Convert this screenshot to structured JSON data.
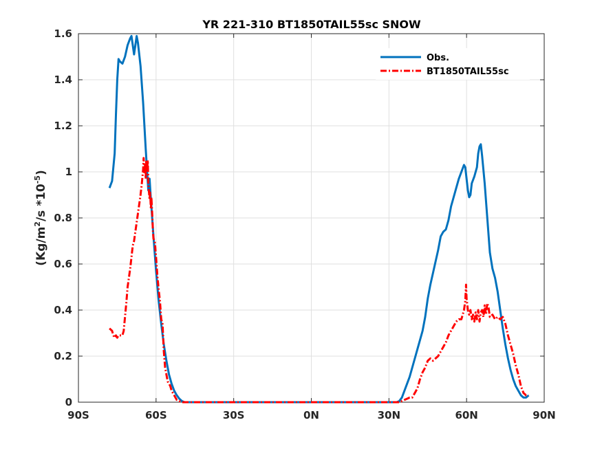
{
  "chart_data": {
    "type": "line",
    "title": "YR 221-310 BT1850TAIL55sc SNOW",
    "ylabel": {
      "prefix": "(Kg/m",
      "sup1": "2",
      "mid": "/s *10",
      "sup2": "-5",
      "suffix": ")"
    },
    "xlabel": "",
    "xlim": [
      -90,
      90
    ],
    "ylim": [
      0,
      1.6
    ],
    "xticks": [
      -90,
      -60,
      -30,
      0,
      30,
      60,
      90
    ],
    "xtick_labels": [
      "90S",
      "60S",
      "30S",
      "0N",
      "30N",
      "60N",
      "90N"
    ],
    "yticks": [
      0,
      0.2,
      0.4,
      0.6,
      0.8,
      1.0,
      1.2,
      1.4,
      1.6
    ],
    "ytick_labels": [
      "0",
      "0.2",
      "0.4",
      "0.6",
      "0.8",
      "1",
      "1.2",
      "1.4",
      "1.6"
    ],
    "grid": true,
    "legend_position": "top-right",
    "series": [
      {
        "name": "Obs.",
        "color": "#0072BD",
        "style": "solid",
        "points": [
          [
            -78,
            0.93
          ],
          [
            -77,
            0.96
          ],
          [
            -76,
            1.08
          ],
          [
            -75.5,
            1.25
          ],
          [
            -75,
            1.4
          ],
          [
            -74.5,
            1.49
          ],
          [
            -74,
            1.48
          ],
          [
            -73,
            1.47
          ],
          [
            -72,
            1.5
          ],
          [
            -71,
            1.55
          ],
          [
            -70,
            1.58
          ],
          [
            -69.5,
            1.59
          ],
          [
            -69,
            1.55
          ],
          [
            -68.5,
            1.51
          ],
          [
            -68,
            1.55
          ],
          [
            -67.5,
            1.59
          ],
          [
            -67,
            1.56
          ],
          [
            -66,
            1.46
          ],
          [
            -65,
            1.3
          ],
          [
            -64,
            1.1
          ],
          [
            -63,
            0.92
          ],
          [
            -62.5,
            0.97
          ],
          [
            -62,
            0.88
          ],
          [
            -61,
            0.72
          ],
          [
            -60,
            0.57
          ],
          [
            -59,
            0.44
          ],
          [
            -58,
            0.34
          ],
          [
            -57,
            0.25
          ],
          [
            -56,
            0.18
          ],
          [
            -55,
            0.12
          ],
          [
            -54,
            0.08
          ],
          [
            -53,
            0.05
          ],
          [
            -52,
            0.03
          ],
          [
            -51,
            0.015
          ],
          [
            -50,
            0.005
          ],
          [
            -49,
            0.0
          ],
          [
            -45,
            0.0
          ],
          [
            -30,
            0.0
          ],
          [
            -15,
            0.0
          ],
          [
            0,
            0.0
          ],
          [
            15,
            0.0
          ],
          [
            30,
            0.0
          ],
          [
            33,
            0.0
          ],
          [
            34,
            0.005
          ],
          [
            35,
            0.02
          ],
          [
            36,
            0.05
          ],
          [
            37,
            0.08
          ],
          [
            38,
            0.11
          ],
          [
            39,
            0.15
          ],
          [
            40,
            0.19
          ],
          [
            41,
            0.23
          ],
          [
            42,
            0.27
          ],
          [
            43,
            0.31
          ],
          [
            44,
            0.37
          ],
          [
            45,
            0.45
          ],
          [
            46,
            0.51
          ],
          [
            47,
            0.56
          ],
          [
            48,
            0.61
          ],
          [
            49,
            0.66
          ],
          [
            50,
            0.72
          ],
          [
            51,
            0.74
          ],
          [
            52,
            0.75
          ],
          [
            53,
            0.79
          ],
          [
            54,
            0.85
          ],
          [
            55,
            0.89
          ],
          [
            56,
            0.93
          ],
          [
            57,
            0.97
          ],
          [
            58,
            1.0
          ],
          [
            59,
            1.03
          ],
          [
            59.5,
            1.02
          ],
          [
            60,
            0.97
          ],
          [
            60.5,
            0.92
          ],
          [
            61,
            0.89
          ],
          [
            61.5,
            0.9
          ],
          [
            62,
            0.95
          ],
          [
            63,
            0.98
          ],
          [
            64,
            1.02
          ],
          [
            64.5,
            1.08
          ],
          [
            65,
            1.11
          ],
          [
            65.5,
            1.12
          ],
          [
            66,
            1.07
          ],
          [
            67,
            0.95
          ],
          [
            68,
            0.8
          ],
          [
            69,
            0.65
          ],
          [
            70,
            0.58
          ],
          [
            71,
            0.54
          ],
          [
            72,
            0.48
          ],
          [
            73,
            0.4
          ],
          [
            74,
            0.32
          ],
          [
            75,
            0.25
          ],
          [
            76,
            0.19
          ],
          [
            77,
            0.14
          ],
          [
            78,
            0.1
          ],
          [
            79,
            0.07
          ],
          [
            80,
            0.05
          ],
          [
            81,
            0.03
          ],
          [
            82,
            0.02
          ],
          [
            83,
            0.02
          ],
          [
            84,
            0.03
          ]
        ]
      },
      {
        "name": "BT1850TAIL55sc",
        "color": "#FF0000",
        "style": "dashdot",
        "points": [
          [
            -78,
            0.32
          ],
          [
            -77,
            0.31
          ],
          [
            -76.5,
            0.29
          ],
          [
            -76,
            0.28
          ],
          [
            -75.5,
            0.29
          ],
          [
            -75,
            0.28
          ],
          [
            -74.5,
            0.29
          ],
          [
            -74,
            0.29
          ],
          [
            -73,
            0.29
          ],
          [
            -72.5,
            0.31
          ],
          [
            -72,
            0.37
          ],
          [
            -71.5,
            0.43
          ],
          [
            -71,
            0.5
          ],
          [
            -70.5,
            0.54
          ],
          [
            -70,
            0.58
          ],
          [
            -69.5,
            0.63
          ],
          [
            -69,
            0.68
          ],
          [
            -68.5,
            0.7
          ],
          [
            -68,
            0.74
          ],
          [
            -67.5,
            0.78
          ],
          [
            -67,
            0.82
          ],
          [
            -66.5,
            0.86
          ],
          [
            -66,
            0.9
          ],
          [
            -65.5,
            0.95
          ],
          [
            -65,
            1.01
          ],
          [
            -64.8,
            1.06
          ],
          [
            -64.5,
            0.99
          ],
          [
            -64.2,
            1.04
          ],
          [
            -64,
            0.97
          ],
          [
            -63.8,
            1.05
          ],
          [
            -63.5,
            1.0
          ],
          [
            -63.2,
            1.05
          ],
          [
            -63,
            0.95
          ],
          [
            -62.8,
            0.92
          ],
          [
            -62.5,
            0.88
          ],
          [
            -62.3,
            0.91
          ],
          [
            -62,
            0.84
          ],
          [
            -61.8,
            0.89
          ],
          [
            -61.5,
            0.82
          ],
          [
            -61.2,
            0.74
          ],
          [
            -61,
            0.71
          ],
          [
            -60.5,
            0.7
          ],
          [
            -60,
            0.63
          ],
          [
            -59.5,
            0.55
          ],
          [
            -59,
            0.49
          ],
          [
            -58.5,
            0.44
          ],
          [
            -58,
            0.36
          ],
          [
            -57.5,
            0.34
          ],
          [
            -57,
            0.22
          ],
          [
            -56.5,
            0.15
          ],
          [
            -56,
            0.12
          ],
          [
            -55.5,
            0.09
          ],
          [
            -55,
            0.08
          ],
          [
            -54.5,
            0.07
          ],
          [
            -54,
            0.05
          ],
          [
            -53.5,
            0.04
          ],
          [
            -53,
            0.03
          ],
          [
            -52.5,
            0.02
          ],
          [
            -52,
            0.01
          ],
          [
            -51,
            0.005
          ],
          [
            -50,
            0.0
          ],
          [
            -45,
            0.0
          ],
          [
            -30,
            0.0
          ],
          [
            -15,
            0.0
          ],
          [
            0,
            0.0
          ],
          [
            15,
            0.0
          ],
          [
            30,
            0.0
          ],
          [
            34,
            0.0
          ],
          [
            35,
            0.005
          ],
          [
            36,
            0.01
          ],
          [
            37,
            0.015
          ],
          [
            38,
            0.02
          ],
          [
            39,
            0.02
          ],
          [
            40,
            0.04
          ],
          [
            41,
            0.06
          ],
          [
            42,
            0.1
          ],
          [
            43,
            0.13
          ],
          [
            44,
            0.15
          ],
          [
            45,
            0.18
          ],
          [
            46,
            0.19
          ],
          [
            47,
            0.18
          ],
          [
            48,
            0.19
          ],
          [
            49,
            0.2
          ],
          [
            50,
            0.22
          ],
          [
            51,
            0.24
          ],
          [
            52,
            0.26
          ],
          [
            53,
            0.29
          ],
          [
            54,
            0.31
          ],
          [
            55,
            0.33
          ],
          [
            56,
            0.35
          ],
          [
            57,
            0.36
          ],
          [
            58,
            0.36
          ],
          [
            59,
            0.4
          ],
          [
            59.5,
            0.44
          ],
          [
            59.8,
            0.51
          ],
          [
            60,
            0.45
          ],
          [
            60.5,
            0.4
          ],
          [
            61,
            0.38
          ],
          [
            61.5,
            0.4
          ],
          [
            62,
            0.36
          ],
          [
            62.5,
            0.38
          ],
          [
            63,
            0.35
          ],
          [
            63.5,
            0.39
          ],
          [
            64,
            0.36
          ],
          [
            64.5,
            0.4
          ],
          [
            65,
            0.35
          ],
          [
            65.5,
            0.39
          ],
          [
            66,
            0.4
          ],
          [
            66.5,
            0.37
          ],
          [
            67,
            0.42
          ],
          [
            67.5,
            0.38
          ],
          [
            68,
            0.43
          ],
          [
            68.5,
            0.41
          ],
          [
            69,
            0.37
          ],
          [
            70,
            0.38
          ],
          [
            71,
            0.36
          ],
          [
            72,
            0.37
          ],
          [
            73,
            0.36
          ],
          [
            74,
            0.37
          ],
          [
            75,
            0.34
          ],
          [
            76,
            0.29
          ],
          [
            77,
            0.25
          ],
          [
            78,
            0.21
          ],
          [
            79,
            0.16
          ],
          [
            80,
            0.12
          ],
          [
            81,
            0.07
          ],
          [
            82,
            0.04
          ],
          [
            83,
            0.03
          ],
          [
            84,
            0.03
          ]
        ]
      }
    ]
  }
}
